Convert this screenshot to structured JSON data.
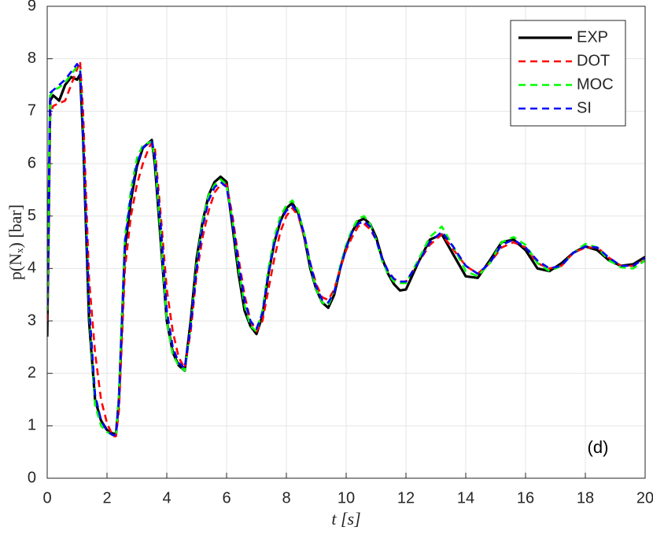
{
  "chart_data": {
    "type": "line",
    "xlabel": "t [s]",
    "ylabel": "p(Nₓ) [bar]",
    "annotation": "(d)",
    "x": [
      0,
      0.1,
      0.2,
      0.4,
      0.6,
      0.8,
      1.0,
      1.1,
      1.2,
      1.4,
      1.6,
      1.8,
      2.0,
      2.2,
      2.3,
      2.4,
      2.6,
      2.8,
      3.0,
      3.2,
      3.4,
      3.5,
      3.6,
      3.8,
      4.0,
      4.2,
      4.4,
      4.6,
      4.8,
      5.0,
      5.2,
      5.4,
      5.6,
      5.8,
      6.0,
      6.2,
      6.4,
      6.6,
      6.8,
      7.0,
      7.2,
      7.4,
      7.6,
      7.8,
      8.0,
      8.2,
      8.4,
      8.6,
      8.8,
      9.0,
      9.2,
      9.4,
      9.6,
      9.8,
      10.0,
      10.2,
      10.4,
      10.6,
      10.8,
      11.0,
      11.2,
      11.4,
      11.6,
      11.8,
      12.0,
      12.4,
      12.8,
      13.2,
      13.6,
      14.0,
      14.4,
      14.8,
      15.2,
      15.6,
      16.0,
      16.4,
      16.8,
      17.2,
      17.6,
      18.0,
      18.4,
      18.8,
      19.2,
      19.6,
      20.0
    ],
    "series": [
      {
        "name": "EXP",
        "color": "#000000",
        "dashed": false,
        "values": [
          2.7,
          7.2,
          7.3,
          7.2,
          7.5,
          7.65,
          7.6,
          7.7,
          6.5,
          3.0,
          1.5,
          1.1,
          0.92,
          0.85,
          0.85,
          1.5,
          4.4,
          5.3,
          5.95,
          6.3,
          6.4,
          6.45,
          6.0,
          4.5,
          3.0,
          2.4,
          2.15,
          2.05,
          3.0,
          4.2,
          4.9,
          5.4,
          5.65,
          5.75,
          5.65,
          4.8,
          3.9,
          3.2,
          2.9,
          2.75,
          3.1,
          3.9,
          4.5,
          4.9,
          5.15,
          5.25,
          5.05,
          4.6,
          4.0,
          3.6,
          3.35,
          3.25,
          3.5,
          4.0,
          4.4,
          4.7,
          4.9,
          4.95,
          4.85,
          4.6,
          4.2,
          3.9,
          3.7,
          3.58,
          3.6,
          4.1,
          4.55,
          4.65,
          4.25,
          3.85,
          3.82,
          4.15,
          4.5,
          4.55,
          4.35,
          4.0,
          3.95,
          4.1,
          4.3,
          4.42,
          4.35,
          4.15,
          4.05,
          4.08,
          4.22
        ]
      },
      {
        "name": "DOT",
        "color": "#ff0000",
        "dashed": true,
        "values": [
          3.0,
          6.9,
          7.1,
          7.15,
          7.2,
          7.5,
          7.8,
          7.95,
          7.0,
          3.8,
          2.4,
          1.5,
          1.05,
          0.8,
          0.8,
          1.3,
          4.0,
          5.0,
          5.6,
          6.0,
          6.3,
          6.4,
          6.3,
          5.0,
          3.6,
          2.8,
          2.3,
          2.1,
          2.8,
          3.9,
          4.6,
          5.1,
          5.45,
          5.6,
          5.6,
          5.0,
          4.2,
          3.5,
          3.0,
          2.8,
          3.0,
          3.6,
          4.2,
          4.7,
          5.0,
          5.15,
          5.0,
          4.6,
          4.1,
          3.7,
          3.45,
          3.4,
          3.6,
          4.0,
          4.35,
          4.6,
          4.8,
          4.85,
          4.75,
          4.55,
          4.2,
          3.95,
          3.8,
          3.75,
          3.75,
          4.1,
          4.45,
          4.65,
          4.35,
          4.05,
          3.9,
          4.1,
          4.4,
          4.5,
          4.4,
          4.1,
          4.0,
          4.05,
          4.3,
          4.4,
          4.4,
          4.2,
          4.05,
          4.05,
          4.15
        ]
      },
      {
        "name": "MOC",
        "color": "#00ff00",
        "dashed": true,
        "values": [
          3.2,
          7.3,
          7.4,
          7.45,
          7.55,
          7.7,
          7.85,
          7.8,
          6.6,
          3.2,
          1.4,
          1.0,
          0.88,
          0.82,
          0.82,
          1.6,
          4.6,
          5.5,
          6.1,
          6.35,
          6.4,
          6.42,
          6.1,
          4.6,
          3.0,
          2.35,
          2.15,
          2.05,
          2.9,
          4.1,
          4.9,
          5.4,
          5.6,
          5.7,
          5.6,
          4.9,
          4.0,
          3.3,
          2.9,
          2.8,
          3.2,
          4.0,
          4.6,
          5.0,
          5.2,
          5.3,
          5.1,
          4.65,
          4.05,
          3.6,
          3.35,
          3.3,
          3.55,
          4.05,
          4.45,
          4.75,
          4.95,
          5.0,
          4.85,
          4.55,
          4.15,
          3.9,
          3.75,
          3.72,
          3.72,
          4.15,
          4.6,
          4.8,
          4.4,
          3.95,
          3.85,
          4.1,
          4.5,
          4.6,
          4.45,
          4.1,
          3.95,
          4.05,
          4.3,
          4.47,
          4.4,
          4.15,
          4.02,
          4.0,
          4.15
        ]
      },
      {
        "name": "SI",
        "color": "#0000ff",
        "dashed": true,
        "values": [
          3.3,
          7.35,
          7.4,
          7.5,
          7.6,
          7.75,
          7.9,
          7.8,
          6.6,
          3.3,
          1.6,
          1.1,
          0.9,
          0.82,
          0.83,
          1.5,
          4.5,
          5.4,
          6.0,
          6.3,
          6.4,
          6.42,
          6.15,
          4.8,
          3.2,
          2.5,
          2.2,
          2.1,
          2.9,
          4.0,
          4.8,
          5.3,
          5.55,
          5.65,
          5.55,
          4.9,
          4.1,
          3.4,
          3.0,
          2.85,
          3.15,
          3.9,
          4.5,
          4.9,
          5.1,
          5.2,
          5.05,
          4.65,
          4.1,
          3.65,
          3.4,
          3.35,
          3.55,
          4.0,
          4.4,
          4.7,
          4.85,
          4.9,
          4.8,
          4.55,
          4.2,
          3.95,
          3.8,
          3.75,
          3.75,
          4.1,
          4.5,
          4.7,
          4.4,
          4.05,
          3.9,
          4.1,
          4.45,
          4.55,
          4.4,
          4.15,
          4.0,
          4.05,
          4.3,
          4.42,
          4.4,
          4.2,
          4.05,
          4.05,
          4.2
        ]
      }
    ],
    "xlim": [
      0,
      20
    ],
    "xticks": [
      0,
      2,
      4,
      6,
      8,
      10,
      12,
      14,
      16,
      18,
      20
    ],
    "ylim": [
      0,
      9
    ],
    "yticks": [
      0,
      1,
      2,
      3,
      4,
      5,
      6,
      7,
      8,
      9
    ],
    "grid": true,
    "legend": "upper right"
  }
}
